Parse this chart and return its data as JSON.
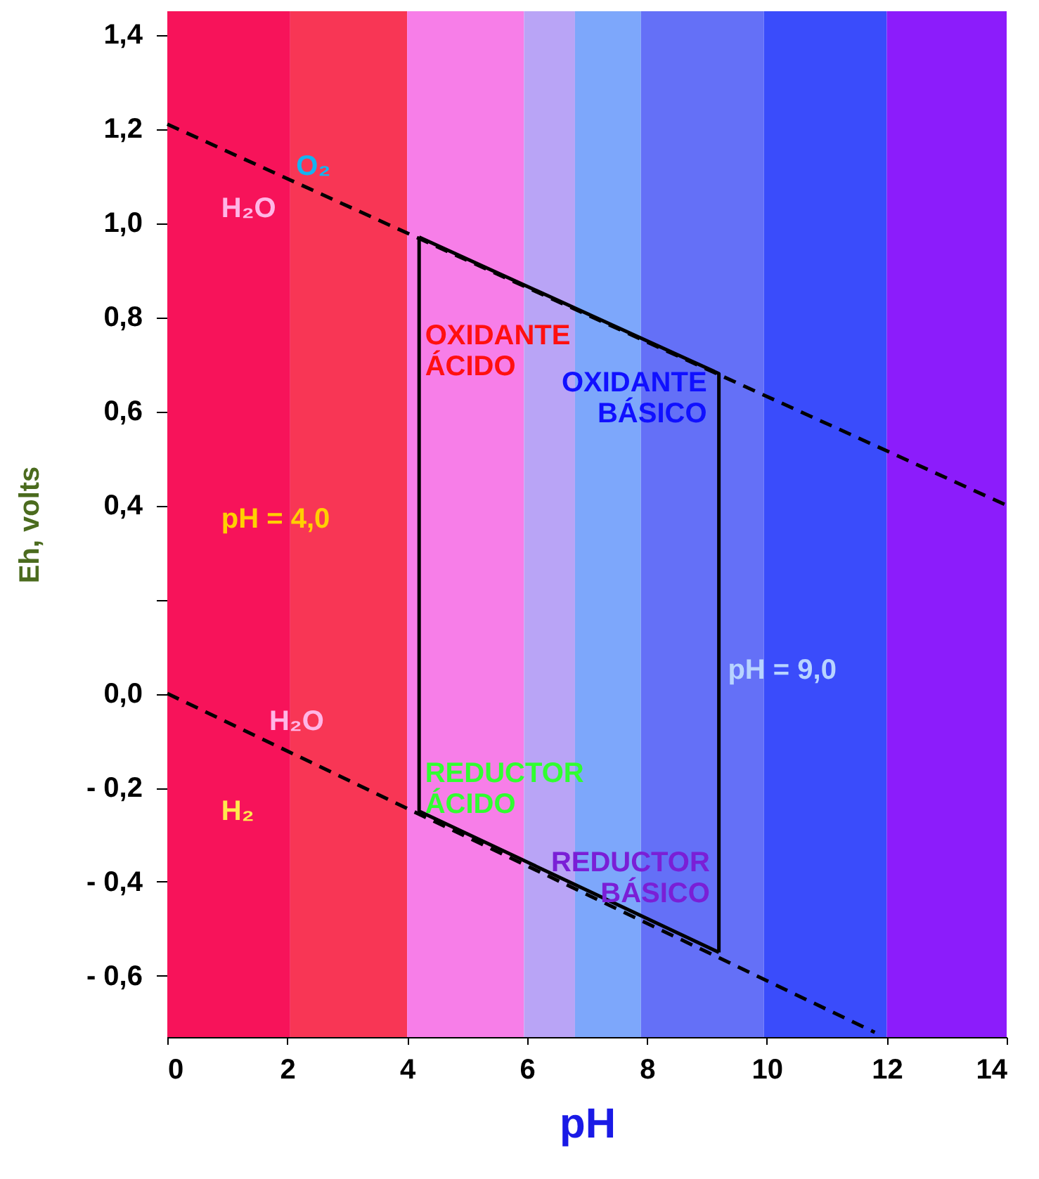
{
  "chart_data": {
    "type": "line",
    "xlabel": "pH",
    "ylabel": "Eh, volts",
    "xlim": [
      0,
      14
    ],
    "xticks": [
      0,
      2,
      4,
      6,
      8,
      10,
      12,
      14
    ],
    "ylim": [
      -0.73,
      1.45
    ],
    "yticks": [
      {
        "value": 1.4,
        "label": "1,4"
      },
      {
        "value": 1.2,
        "label": "1,2"
      },
      {
        "value": 1.0,
        "label": "1,0"
      },
      {
        "value": 0.8,
        "label": "0,8"
      },
      {
        "value": 0.6,
        "label": "0,6"
      },
      {
        "value": 0.4,
        "label": "0,4"
      },
      {
        "value": 0.2,
        "label": null
      },
      {
        "value": 0,
        "label": "0,0"
      },
      {
        "value": -0.2,
        "label": "- 0,2"
      },
      {
        "value": -0.4,
        "label": "- 0,4"
      },
      {
        "value": -0.6,
        "label": "- 0,6"
      }
    ],
    "grid": false,
    "marker": "none",
    "series": [
      {
        "color": "#000000",
        "line_style": "dashed",
        "x": [
          0,
          14
        ],
        "values": [
          1.21,
          0.4
        ]
      },
      {
        "color": "#000000",
        "line_style": "dashed",
        "x": [
          0,
          11.8
        ],
        "values": [
          0,
          -0.72
        ]
      },
      {
        "color": "#000000",
        "line_style": "solid",
        "x": [
          4.2,
          4.2,
          9.2
        ],
        "values": [
          0.97,
          -0.25,
          -0.55
        ]
      },
      {
        "color": "#000000",
        "line_style": "solid",
        "x": [
          4.2,
          9.2,
          9.2
        ],
        "values": [
          0.97,
          0.68,
          -0.55
        ]
      }
    ],
    "bands": [
      {
        "axis": "x",
        "from": 0,
        "to": 2.05,
        "color": "#f7135a"
      },
      {
        "axis": "x",
        "from": 2.05,
        "to": 4,
        "color": "#f83655"
      },
      {
        "axis": "x",
        "from": 4,
        "to": 5.95,
        "color": "#f77ee8"
      },
      {
        "axis": "x",
        "from": 5.95,
        "to": 6.8,
        "color": "#b9a4f6"
      },
      {
        "axis": "x",
        "from": 6.8,
        "to": 7.9,
        "color": "#7da7fb"
      },
      {
        "axis": "x",
        "from": 7.9,
        "to": 9.95,
        "color": "#6470f7"
      },
      {
        "axis": "x",
        "from": 9.95,
        "to": 12,
        "color": "#3a4cfb"
      },
      {
        "axis": "x",
        "from": 12,
        "to": 14,
        "color": "#8c1cfb"
      }
    ],
    "annotations": [
      "O₂",
      "H₂O",
      "OXIDANTE\nÁCIDO",
      "OXIDANTE\nBÁSICO",
      "pH = 4,0",
      "pH = 9,0",
      "H₂O",
      "H₂",
      "REDUCTOR\nÁCIDO",
      "REDUCTOR\nBÁSICO"
    ]
  }
}
